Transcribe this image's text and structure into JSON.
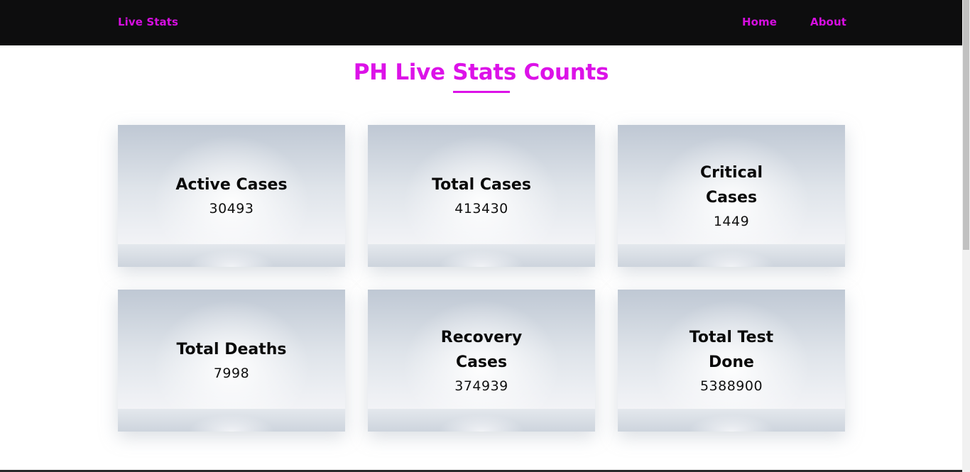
{
  "navbar": {
    "brand": "Live Stats",
    "links": [
      {
        "label": "Home"
      },
      {
        "label": "About"
      }
    ]
  },
  "main": {
    "title": "PH Live Stats Counts",
    "cards": [
      {
        "title": "Active Cases",
        "value": "30493"
      },
      {
        "title": "Total Cases",
        "value": "413430"
      },
      {
        "title": "Critical Cases",
        "value": "1449"
      },
      {
        "title": "Total Deaths",
        "value": "7998"
      },
      {
        "title": "Recovery Cases",
        "value": "374939"
      },
      {
        "title": "Total Test Done",
        "value": "5388900"
      }
    ]
  },
  "colors": {
    "accent": "#dc12e8",
    "navbar_bg": "#0d0d0e",
    "text": "#0a0a0a"
  }
}
